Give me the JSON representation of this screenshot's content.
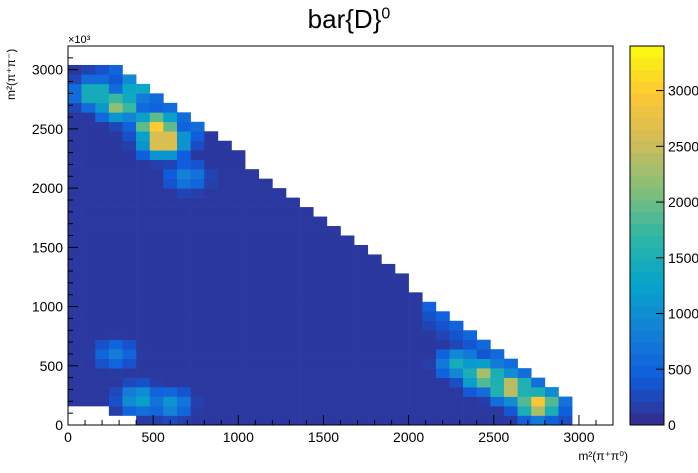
{
  "chart_data": {
    "type": "heatmap",
    "title": "bar{D}",
    "title_sup": "0",
    "xlabel": "m²(π⁺π⁰)",
    "ylabel": "m²(π⁺π⁻)",
    "y_multiplier": "×10³",
    "xlim": [
      0,
      3200
    ],
    "ylim": [
      0,
      3200
    ],
    "x_ticks": [
      "0",
      "500",
      "1000",
      "1500",
      "2000",
      "2500",
      "3000"
    ],
    "y_ticks": [
      "0",
      "500",
      "1000",
      "1500",
      "2000",
      "2500",
      "3000"
    ],
    "z_ticks": [
      "0",
      "500",
      "1000",
      "1500",
      "2000",
      "2500",
      "3000"
    ],
    "zlim": [
      0,
      3400
    ],
    "bin_size": 80,
    "colorscale": [
      "#352a87",
      "#0f5cdd",
      "#1481d6",
      "#06a4ca",
      "#2eb7a4",
      "#87bf77",
      "#d1bb59",
      "#fec832",
      "#f9fb0e"
    ],
    "hotspots": [
      {
        "x": 560,
        "y": 2400,
        "value": 3300
      },
      {
        "x": 520,
        "y": 2520,
        "value": 3000
      },
      {
        "x": 2760,
        "y": 180,
        "value": 3000
      },
      {
        "x": 2600,
        "y": 320,
        "value": 2700
      },
      {
        "x": 2440,
        "y": 420,
        "value": 2400
      },
      {
        "x": 300,
        "y": 2700,
        "value": 2300
      },
      {
        "x": 160,
        "y": 2800,
        "value": 1800
      },
      {
        "x": 400,
        "y": 2850,
        "value": 1500
      },
      {
        "x": 2300,
        "y": 520,
        "value": 1500
      },
      {
        "x": 420,
        "y": 220,
        "value": 1300
      },
      {
        "x": 600,
        "y": 180,
        "value": 1100
      },
      {
        "x": 280,
        "y": 600,
        "value": 800
      },
      {
        "x": 700,
        "y": 2100,
        "value": 900
      }
    ],
    "grid": false
  }
}
